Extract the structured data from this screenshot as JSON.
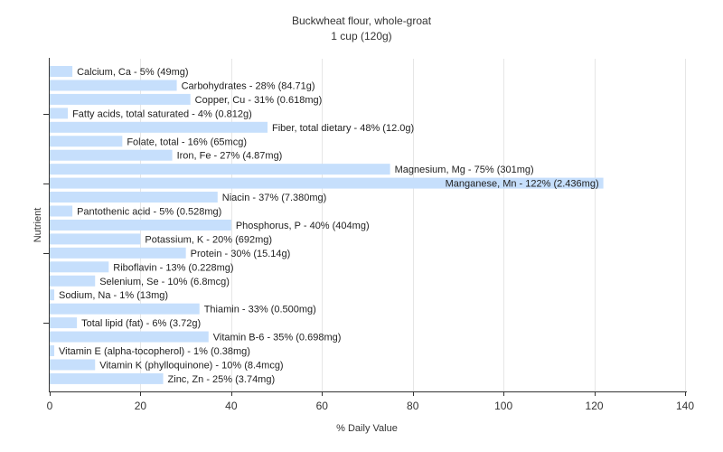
{
  "chart_data": {
    "type": "bar",
    "orientation": "horizontal",
    "title": "Buckwheat flour, whole-groat",
    "subtitle": "1 cup (120g)",
    "xlabel": "% Daily Value",
    "ylabel": "Nutrient",
    "xlim": [
      0,
      140
    ],
    "xticks": [
      0,
      20,
      40,
      60,
      80,
      100,
      120,
      140
    ],
    "grid": true,
    "bar_color": "#c6dffc",
    "grid_color": "#e6e6e6",
    "categories": [
      "Calcium, Ca",
      "Carbohydrates",
      "Copper, Cu",
      "Fatty acids, total saturated",
      "Fiber, total dietary",
      "Folate, total",
      "Iron, Fe",
      "Magnesium, Mg",
      "Manganese, Mn",
      "Niacin",
      "Pantothenic acid",
      "Phosphorus, P",
      "Potassium, K",
      "Protein",
      "Riboflavin",
      "Selenium, Se",
      "Sodium, Na",
      "Thiamin",
      "Total lipid (fat)",
      "Vitamin B-6",
      "Vitamin E (alpha-tocopherol)",
      "Vitamin K (phylloquinone)",
      "Zinc, Zn"
    ],
    "values": [
      5,
      28,
      31,
      4,
      48,
      16,
      27,
      75,
      122,
      37,
      5,
      40,
      20,
      30,
      13,
      10,
      1,
      33,
      6,
      35,
      1,
      10,
      25
    ],
    "labels": [
      "Calcium, Ca - 5% (49mg)",
      "Carbohydrates - 28% (84.71g)",
      "Copper, Cu - 31% (0.618mg)",
      "Fatty acids, total saturated - 4% (0.812g)",
      "Fiber, total dietary - 48% (12.0g)",
      "Folate, total - 16% (65mcg)",
      "Iron, Fe - 27% (4.87mg)",
      "Magnesium, Mg - 75% (301mg)",
      "Manganese, Mn - 122% (2.436mg)",
      "Niacin - 37% (7.380mg)",
      "Pantothenic acid - 5% (0.528mg)",
      "Phosphorus, P - 40% (404mg)",
      "Potassium, K - 20% (692mg)",
      "Protein - 30% (15.14g)",
      "Riboflavin - 13% (0.228mg)",
      "Selenium, Se - 10% (6.8mcg)",
      "Sodium, Na - 1% (13mg)",
      "Thiamin - 33% (0.500mg)",
      "Total lipid (fat) - 6% (3.72g)",
      "Vitamin B-6 - 35% (0.698mg)",
      "Vitamin E (alpha-tocopherol) - 1% (0.38mg)",
      "Vitamin K (phylloquinone) - 10% (8.4mcg)",
      "Zinc, Zn - 25% (3.74mg)"
    ]
  }
}
